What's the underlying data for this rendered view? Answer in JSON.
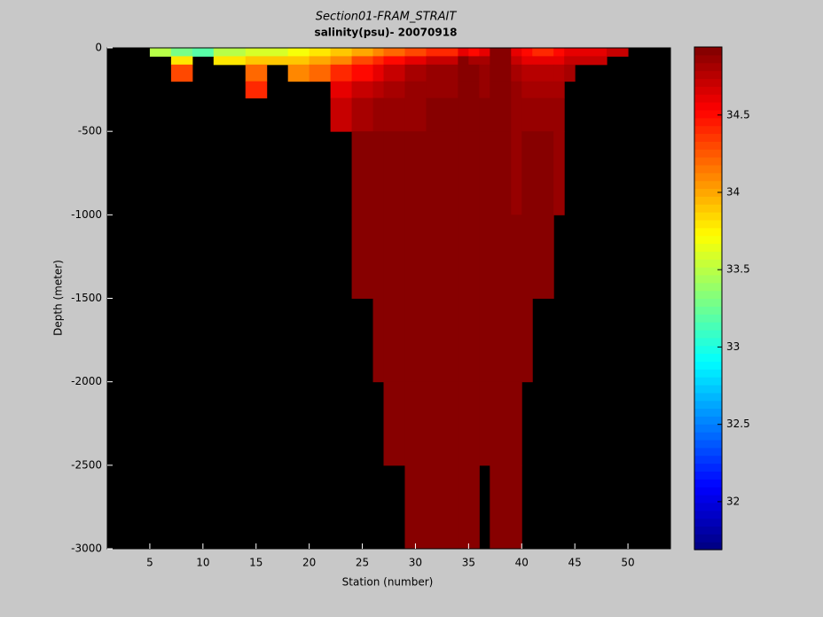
{
  "chart_data": {
    "type": "heatmap",
    "title": "Section01-FRAM_STRAIT",
    "subtitle": "salinity(psu)- 20070918",
    "xlabel": "Station (number)",
    "ylabel": "Depth (meter)",
    "xlim": [
      1,
      54
    ],
    "ylim": [
      -3000,
      0
    ],
    "xticks": [
      5,
      10,
      15,
      20,
      25,
      30,
      35,
      40,
      45,
      50
    ],
    "yticks": [
      -3000,
      -2500,
      -2000,
      -1500,
      -1000,
      -500,
      0
    ],
    "colormap": "jet",
    "clim": [
      31.69,
      34.94
    ],
    "cticks": [
      32,
      32.5,
      33,
      33.5,
      34,
      34.5
    ],
    "xbins": [
      1,
      5,
      7,
      9,
      11,
      14,
      16,
      18,
      20,
      22,
      24,
      26,
      27,
      29,
      31,
      34,
      35,
      36,
      37,
      39,
      40,
      41,
      43,
      44,
      45,
      48,
      50,
      54
    ],
    "ybins": [
      0,
      -50,
      -100,
      -200,
      -300,
      -500,
      -1000,
      -1500,
      -2000,
      -2500,
      -3000
    ],
    "values": [
      [
        null,
        33.5,
        33.3,
        33.2,
        33.5,
        33.6,
        33.6,
        33.7,
        33.8,
        33.9,
        34.0,
        34.1,
        34.2,
        34.3,
        34.4,
        34.6,
        34.5,
        34.6,
        34.9,
        34.6,
        34.5,
        34.4,
        34.5,
        34.6,
        34.6,
        34.7,
        null
      ],
      [
        null,
        null,
        33.8,
        null,
        33.8,
        33.9,
        33.9,
        33.9,
        34.0,
        34.1,
        34.3,
        34.4,
        34.5,
        34.6,
        34.7,
        34.9,
        34.8,
        34.8,
        34.9,
        34.7,
        34.6,
        34.6,
        34.6,
        34.7,
        34.7,
        null,
        null
      ],
      [
        null,
        null,
        34.3,
        null,
        null,
        34.2,
        null,
        34.1,
        34.2,
        34.4,
        34.5,
        34.6,
        34.7,
        34.8,
        34.85,
        34.93,
        34.9,
        34.85,
        34.93,
        34.8,
        34.75,
        34.75,
        34.75,
        34.8,
        null,
        null,
        null
      ],
      [
        null,
        null,
        null,
        null,
        null,
        34.4,
        null,
        null,
        null,
        34.6,
        34.7,
        34.75,
        34.8,
        34.85,
        34.88,
        34.93,
        34.9,
        34.88,
        34.93,
        34.85,
        34.8,
        34.8,
        34.8,
        null,
        null,
        null,
        null
      ],
      [
        null,
        null,
        null,
        null,
        null,
        null,
        null,
        null,
        null,
        34.7,
        34.8,
        34.85,
        34.88,
        34.88,
        34.9,
        34.93,
        34.9,
        34.9,
        34.93,
        34.88,
        34.85,
        34.85,
        34.85,
        null,
        null,
        null,
        null
      ],
      [
        null,
        null,
        null,
        null,
        null,
        null,
        null,
        null,
        null,
        null,
        34.9,
        34.9,
        34.9,
        34.9,
        34.9,
        34.93,
        34.9,
        34.9,
        34.93,
        34.88,
        34.9,
        34.9,
        34.88,
        null,
        null,
        null,
        null
      ],
      [
        null,
        null,
        null,
        null,
        null,
        null,
        null,
        null,
        null,
        null,
        34.9,
        34.9,
        34.9,
        34.9,
        34.9,
        34.93,
        34.9,
        34.9,
        34.93,
        34.9,
        34.9,
        34.9,
        null,
        null,
        null,
        null,
        null
      ],
      [
        null,
        null,
        null,
        null,
        null,
        null,
        null,
        null,
        null,
        null,
        null,
        34.9,
        34.9,
        34.9,
        34.9,
        34.93,
        34.9,
        34.9,
        34.93,
        34.9,
        34.9,
        null,
        null,
        null,
        null,
        null,
        null
      ],
      [
        null,
        null,
        null,
        null,
        null,
        null,
        null,
        null,
        null,
        null,
        null,
        null,
        34.9,
        34.9,
        34.9,
        34.93,
        34.9,
        34.9,
        34.93,
        34.9,
        null,
        null,
        null,
        null,
        null,
        null,
        null
      ],
      [
        null,
        null,
        null,
        null,
        null,
        null,
        null,
        null,
        null,
        null,
        null,
        null,
        null,
        34.9,
        34.9,
        34.93,
        34.9,
        null,
        34.93,
        34.9,
        null,
        null,
        null,
        null,
        null,
        null,
        null
      ]
    ]
  }
}
